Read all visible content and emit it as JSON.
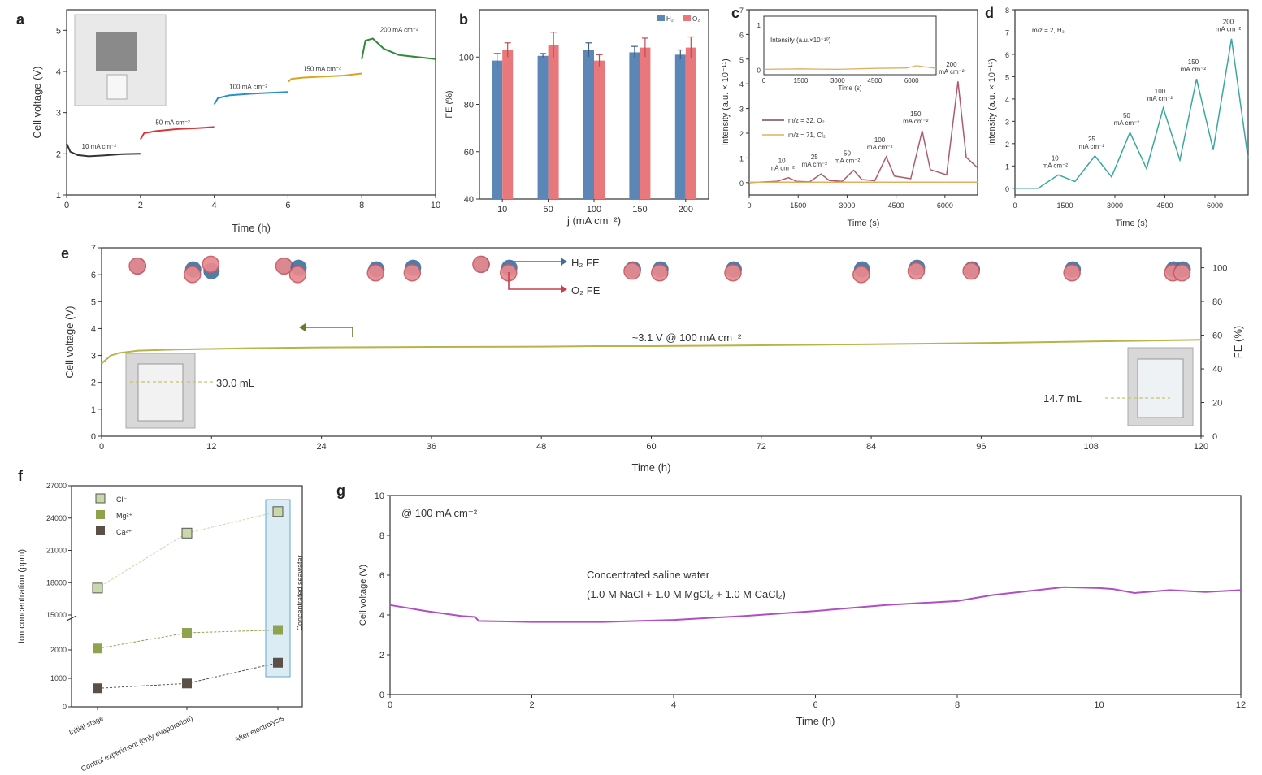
{
  "chart_data": [
    {
      "panel": "a",
      "type": "line",
      "xlabel": "Time (h)",
      "ylabel": "Cell voltage (V)",
      "xlim": [
        0,
        10
      ],
      "ylim": [
        1,
        5.5
      ],
      "xticks": [
        0,
        2,
        4,
        6,
        8,
        10
      ],
      "yticks": [
        1,
        2,
        3,
        4,
        5
      ],
      "series": [
        {
          "name": "10 mA cm⁻²",
          "color": "#333333",
          "x": [
            0,
            0.1,
            0.3,
            0.6,
            1.0,
            1.5,
            2.0
          ],
          "y": [
            2.25,
            2.05,
            1.97,
            1.94,
            1.96,
            1.99,
            2.0
          ]
        },
        {
          "name": "50 mA cm⁻²",
          "color": "#d23a3a",
          "x": [
            2.0,
            2.1,
            2.4,
            3.0,
            3.5,
            4.0
          ],
          "y": [
            2.35,
            2.5,
            2.55,
            2.6,
            2.62,
            2.65
          ]
        },
        {
          "name": "100 mA cm⁻²",
          "color": "#2a8fc9",
          "x": [
            4.0,
            4.1,
            4.4,
            5.0,
            5.5,
            6.0
          ],
          "y": [
            3.2,
            3.35,
            3.42,
            3.46,
            3.48,
            3.5
          ]
        },
        {
          "name": "150 mA cm⁻²",
          "color": "#d9a520",
          "x": [
            6.0,
            6.1,
            6.4,
            7.0,
            7.5,
            8.0
          ],
          "y": [
            3.75,
            3.82,
            3.85,
            3.88,
            3.9,
            3.95
          ]
        },
        {
          "name": "200 mA cm⁻²",
          "color": "#2e8b3a",
          "x": [
            8.0,
            8.1,
            8.3,
            8.6,
            9.0,
            9.5,
            10.0
          ],
          "y": [
            4.3,
            4.75,
            4.8,
            4.55,
            4.4,
            4.35,
            4.3
          ]
        }
      ]
    },
    {
      "panel": "b",
      "type": "bar",
      "xlabel": "j (mA cm⁻²)",
      "ylabel": "FE (%)",
      "ylim": [
        40,
        120
      ],
      "yticks": [
        40,
        60,
        80,
        100
      ],
      "categories": [
        "10",
        "50",
        "100",
        "150",
        "200"
      ],
      "series": [
        {
          "name": "H₂",
          "color": "#5b86b5",
          "values": [
            98.5,
            100.5,
            103,
            102,
            101
          ],
          "errors": [
            3,
            1,
            3,
            2.5,
            2
          ]
        },
        {
          "name": "O₂",
          "color": "#e8787c",
          "values": [
            103,
            105,
            98.5,
            104,
            104
          ],
          "errors": [
            3,
            5.5,
            2.5,
            4,
            4.5
          ]
        }
      ]
    },
    {
      "panel": "c",
      "type": "line",
      "xlabel": "Time (s)",
      "ylabel": "Intensity (a.u. × 10⁻¹¹)",
      "xlim": [
        0,
        7000
      ],
      "ylim": [
        -0.5,
        7
      ],
      "xticks": [
        0,
        1500,
        3000,
        4500,
        6000
      ],
      "yticks": [
        0,
        1,
        2,
        3,
        4,
        5,
        6,
        7
      ],
      "legend": [
        "m/z = 32, O₂",
        "m/z = 71, Cl₂"
      ],
      "peak_labels": [
        "10 mA cm⁻²",
        "25 mA cm⁻²",
        "50 mA cm⁻²",
        "100 mA cm⁻²",
        "150 mA cm⁻²",
        "200 mA cm⁻²"
      ],
      "peak_values": [
        0.2,
        0.35,
        0.5,
        1.05,
        2.1,
        4.1
      ],
      "inset": {
        "ylabel": "Intensity (a.u.×10⁻¹⁰)",
        "xlabel": "Time (s)",
        "yticks": [
          0,
          1
        ],
        "xticks": [
          0,
          1500,
          3000,
          4500,
          6000
        ]
      }
    },
    {
      "panel": "d",
      "type": "line",
      "xlabel": "Time (s)",
      "ylabel": "Intensity (a.u. × 10⁻¹¹)",
      "xlim": [
        0,
        7000
      ],
      "ylim": [
        -0.3,
        8
      ],
      "xticks": [
        0,
        1500,
        3000,
        4500,
        6000
      ],
      "yticks": [
        0,
        1,
        2,
        3,
        4,
        5,
        6,
        7,
        8
      ],
      "legend": [
        "m/z = 2, H₂"
      ],
      "peak_labels": [
        "10 mA cm⁻²",
        "25 mA cm⁻²",
        "50 mA cm⁻²",
        "100 mA cm⁻²",
        "150 mA cm⁻²",
        "200 mA cm⁻²"
      ],
      "peak_values": [
        0.6,
        1.45,
        2.5,
        3.6,
        4.9,
        6.7
      ]
    },
    {
      "panel": "e",
      "type": "line",
      "xlabel": "Time (h)",
      "ylabel": "Cell voltage (V)",
      "y2label": "FE (%)",
      "xlim": [
        0,
        120
      ],
      "ylim": [
        0,
        7
      ],
      "y2lim": [
        0,
        100
      ],
      "xticks": [
        0,
        12,
        24,
        36,
        48,
        60,
        72,
        84,
        96,
        108,
        120
      ],
      "yticks": [
        0,
        1,
        2,
        3,
        4,
        5,
        6,
        7
      ],
      "y2ticks": [
        0,
        20,
        40,
        60,
        80,
        100
      ],
      "voltage_x": [
        0,
        1,
        2,
        4,
        8,
        16,
        24,
        36,
        48,
        54,
        60,
        72,
        84,
        96,
        108,
        120
      ],
      "voltage_y": [
        2.7,
        3.0,
        3.1,
        3.18,
        3.22,
        3.27,
        3.3,
        3.32,
        3.33,
        3.35,
        3.35,
        3.38,
        3.42,
        3.46,
        3.52,
        3.58
      ],
      "fe_points_x": [
        4,
        10,
        12,
        20,
        21.5,
        30,
        34,
        41.5,
        44.5,
        58,
        61,
        69,
        83,
        89,
        95,
        106,
        117,
        118
      ],
      "fe_h2": [
        101,
        99,
        98,
        101,
        100,
        99,
        100,
        102,
        100,
        99,
        99,
        99,
        99,
        100,
        99,
        99,
        99,
        99
      ],
      "fe_o2": [
        102,
        97,
        103,
        102,
        97,
        98,
        98,
        103,
        98,
        99,
        98,
        98,
        97,
        99,
        99,
        98,
        98,
        98
      ],
      "annotations": [
        "H₂ FE",
        "O₂ FE",
        "~3.1 V @ 100 mA cm⁻²",
        "30.0 mL",
        "14.7 mL"
      ]
    },
    {
      "panel": "f",
      "type": "line",
      "ylabel": "Ion concentration (ppm)",
      "categories": [
        "Initial stage",
        "Control experiment (only evaporation)",
        "After electrolysis"
      ],
      "yticks": [
        0,
        1000,
        2000,
        15000,
        18000,
        21000,
        24000,
        27000
      ],
      "series": [
        {
          "name": "Cl⁻",
          "color": "#c9d8a8",
          "values": [
            17500,
            22600,
            24600
          ]
        },
        {
          "name": "Mg²⁺",
          "color": "#8fa34e",
          "values": [
            2050,
            2600,
            2700
          ]
        },
        {
          "name": "Ca²⁺",
          "color": "#5a5048",
          "values": [
            650,
            820,
            1550
          ]
        }
      ],
      "highlight_label": "Concentrated seawater"
    },
    {
      "panel": "g",
      "type": "line",
      "xlabel": "Time (h)",
      "ylabel": "Cell voltage (V)",
      "xlim": [
        0,
        12
      ],
      "ylim": [
        0,
        10
      ],
      "xticks": [
        0,
        2,
        4,
        6,
        8,
        10,
        12
      ],
      "yticks": [
        0,
        2,
        4,
        6,
        8,
        10
      ],
      "title": "@ 100 mA cm⁻²",
      "annotation_line1": "Concentrated saline water",
      "annotation_line2": "(1.0 M NaCl + 1.0 M MgCl₂ + 1.0 M CaCl₂)",
      "color": "#b04ec4",
      "x": [
        0,
        0.5,
        1.0,
        1.2,
        1.25,
        2,
        3,
        4,
        5,
        6,
        7,
        7.5,
        8,
        8.5,
        9,
        9.5,
        10,
        10.2,
        10.5,
        11,
        11.5,
        12
      ],
      "y": [
        4.5,
        4.2,
        3.95,
        3.9,
        3.7,
        3.65,
        3.65,
        3.75,
        3.95,
        4.2,
        4.5,
        4.6,
        4.7,
        5.0,
        5.2,
        5.4,
        5.35,
        5.3,
        5.1,
        5.25,
        5.15,
        5.25
      ]
    }
  ]
}
